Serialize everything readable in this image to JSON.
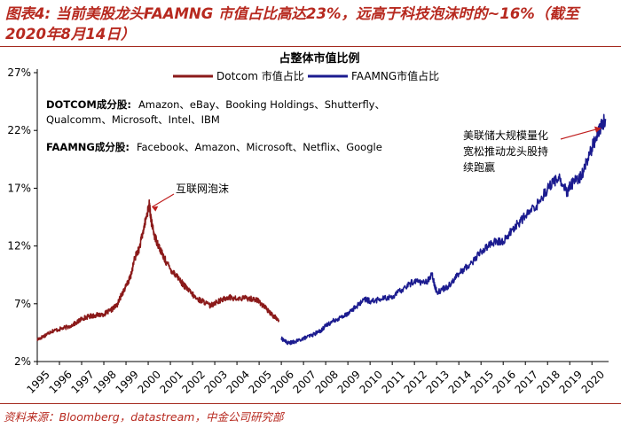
{
  "figure": {
    "caption": "图表4: 当前美股龙头FAAMNG 市值占比高达23%，远高于科技泡沫时的~16%（截至2020年8月14日）",
    "source": "资料来源：Bloomberg，datastream，中金公司研究部"
  },
  "chart_data": {
    "type": "line",
    "title": "占整体市值比例",
    "xlabel": "",
    "ylabel": "",
    "ylim": [
      2,
      27
    ],
    "yticks": [
      2,
      7,
      12,
      17,
      22,
      27
    ],
    "ytick_labels": [
      "2%",
      "7%",
      "12%",
      "17%",
      "22%",
      "27%"
    ],
    "xlim": [
      1995,
      2020.75
    ],
    "xtick_labels": [
      "1995",
      "1996",
      "1997",
      "1998",
      "1999",
      "2000",
      "2001",
      "2002",
      "2003",
      "2004",
      "2005",
      "2006",
      "2007",
      "2008",
      "2009",
      "2010",
      "2011",
      "2012",
      "2013",
      "2014",
      "2015",
      "2016",
      "2017",
      "2018",
      "2019",
      "2020"
    ],
    "legend_position": "top-center",
    "series": [
      {
        "name": "Dotcom 市值占比",
        "color": "#8b1a1a",
        "x": [
          1995.0,
          1995.3,
          1995.6,
          1996.0,
          1996.4,
          1996.8,
          1997.0,
          1997.3,
          1997.6,
          1998.0,
          1998.3,
          1998.6,
          1998.8,
          1999.0,
          1999.2,
          1999.4,
          1999.6,
          1999.8,
          1999.95,
          2000.05,
          2000.15,
          2000.3,
          2000.5,
          2000.7,
          2001.0,
          2001.3,
          2001.6,
          2001.9,
          2002.2,
          2002.5,
          2002.8,
          2003.0,
          2003.3,
          2003.6,
          2004.0,
          2004.4,
          2004.8,
          2005.0,
          2005.3,
          2005.6,
          2005.9
        ],
        "y": [
          3.9,
          4.2,
          4.6,
          4.8,
          5.0,
          5.4,
          5.7,
          5.9,
          6.0,
          6.1,
          6.4,
          6.9,
          7.8,
          8.5,
          9.3,
          11.0,
          11.8,
          13.5,
          14.8,
          15.6,
          14.0,
          12.8,
          11.9,
          11.0,
          10.0,
          9.4,
          8.6,
          8.0,
          7.4,
          7.2,
          6.8,
          7.1,
          7.3,
          7.6,
          7.4,
          7.5,
          7.4,
          7.2,
          6.6,
          6.0,
          5.6
        ]
      },
      {
        "name": "FAAMNG市值占比",
        "color": "#1b1b8f",
        "x": [
          2006.0,
          2006.3,
          2006.6,
          2007.0,
          2007.4,
          2007.8,
          2008.0,
          2008.4,
          2008.8,
          2009.0,
          2009.4,
          2009.8,
          2010.0,
          2010.5,
          2011.0,
          2011.5,
          2012.0,
          2012.5,
          2012.8,
          2013.0,
          2013.5,
          2014.0,
          2014.5,
          2015.0,
          2015.5,
          2016.0,
          2016.5,
          2017.0,
          2017.5,
          2018.0,
          2018.5,
          2018.9,
          2019.0,
          2019.5,
          2020.0,
          2020.2,
          2020.4,
          2020.62
        ],
        "y": [
          4.0,
          3.6,
          3.7,
          4.0,
          4.3,
          4.7,
          5.1,
          5.6,
          5.9,
          6.2,
          6.8,
          7.4,
          7.2,
          7.4,
          7.6,
          8.3,
          9.0,
          8.8,
          9.5,
          8.0,
          8.5,
          9.6,
          10.4,
          11.5,
          12.3,
          12.4,
          13.6,
          14.6,
          15.5,
          17.0,
          18.0,
          16.5,
          17.2,
          18.0,
          20.5,
          21.5,
          22.3,
          23.0
        ]
      }
    ],
    "annotations": [
      {
        "text": "互联网泡沫",
        "target_x": 2000.05,
        "target_y": 15.6
      },
      {
        "text": "美联储大规模量化",
        "target_x": 2020.55,
        "target_y": 22.2
      },
      {
        "text": "宽松推动龙头股持",
        "target_x": 2020.55,
        "target_y": 22.2
      },
      {
        "text": "续跑赢",
        "target_x": 2020.55,
        "target_y": 22.2
      }
    ],
    "notes": [
      {
        "label": "DOTCOM成分股:",
        "text": "Amazon、eBay、Booking Holdings、Shutterfly、"
      },
      {
        "label": "",
        "text": "Qualcomm、Microsoft、Intel、IBM"
      },
      {
        "label": "FAAMNG成分股:",
        "text": "Facebook、Amazon、Microsoft、Netflix、Google"
      }
    ]
  }
}
